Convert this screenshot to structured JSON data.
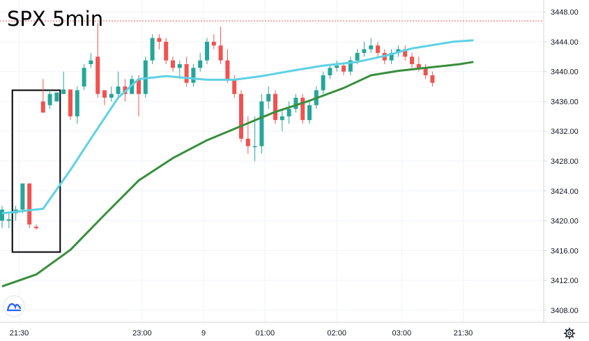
{
  "chart_data": {
    "type": "candlestick",
    "title": "SPX 5min",
    "xlabel": "",
    "ylabel": "",
    "ylim": [
      3406.4,
      3449.6
    ],
    "grid": true,
    "x_ticks": [
      {
        "label": "21:30",
        "x": 2.5
      },
      {
        "label": "23:00",
        "x": 20.5
      },
      {
        "label": "9",
        "x": 29.5
      },
      {
        "label": "01:00",
        "x": 38.5
      },
      {
        "label": "02:00",
        "x": 49.0
      },
      {
        "label": "03:00",
        "x": 58.5
      },
      {
        "label": "21:30",
        "x": 67.5
      }
    ],
    "y_ticks": [
      3408,
      3412,
      3416,
      3420,
      3424,
      3428,
      3432,
      3436,
      3440,
      3444,
      3448
    ],
    "candles": [
      [
        3420.0,
        3422.0,
        3419.0,
        3421.5
      ],
      [
        3420.0,
        3421.0,
        3419.0,
        3420.2
      ],
      [
        3421.0,
        3422.0,
        3420.0,
        3421.5
      ],
      [
        3421.5,
        3425.0,
        3421.0,
        3425.0
      ],
      [
        3425.0,
        3425.0,
        3419.0,
        3419.5
      ],
      [
        3419.2,
        3419.5,
        3418.8,
        3419.0
      ],
      [
        3436.0,
        3439.0,
        3434.5,
        3434.5
      ],
      [
        3435.5,
        3437.5,
        3435.0,
        3437.0
      ],
      [
        3436.0,
        3437.0,
        3436.0,
        3437.2
      ],
      [
        3437.0,
        3440.0,
        3437.0,
        3437.6
      ],
      [
        3437.6,
        3437.6,
        3433.5,
        3434.0
      ],
      [
        3434.0,
        3438.0,
        3433.0,
        3437.5
      ],
      [
        3438.0,
        3441.0,
        3437.5,
        3440.5
      ],
      [
        3441.0,
        3442.5,
        3440.5,
        3441.5
      ],
      [
        3442.0,
        3446.5,
        3436.5,
        3437.0
      ],
      [
        3437.5,
        3437.5,
        3435.5,
        3436.5
      ],
      [
        3436.5,
        3438.0,
        3436.0,
        3437.0
      ],
      [
        3437.0,
        3440.0,
        3436.5,
        3438.0
      ],
      [
        3438.0,
        3439.0,
        3436.0,
        3437.0
      ],
      [
        3437.0,
        3439.5,
        3437.0,
        3439.0
      ],
      [
        3439.0,
        3439.5,
        3434.0,
        3437.0
      ],
      [
        3437.0,
        3442.0,
        3436.5,
        3441.5
      ],
      [
        3441.5,
        3445.0,
        3441.0,
        3444.5
      ],
      [
        3444.5,
        3445.0,
        3443.0,
        3444.0
      ],
      [
        3444.0,
        3444.5,
        3441.0,
        3441.5
      ],
      [
        3441.5,
        3442.0,
        3440.0,
        3440.5
      ],
      [
        3440.5,
        3441.5,
        3439.0,
        3441.0
      ],
      [
        3441.0,
        3442.0,
        3438.0,
        3438.5
      ],
      [
        3438.5,
        3441.0,
        3438.0,
        3440.5
      ],
      [
        3440.5,
        3442.5,
        3440.0,
        3441.5
      ],
      [
        3441.5,
        3444.5,
        3441.0,
        3444.0
      ],
      [
        3444.0,
        3445.0,
        3443.0,
        3443.5
      ],
      [
        3443.5,
        3446.0,
        3441.0,
        3441.5
      ],
      [
        3441.5,
        3443.0,
        3438.5,
        3439.0
      ],
      [
        3439.0,
        3439.5,
        3436.5,
        3437.0
      ],
      [
        3437.0,
        3437.5,
        3430.5,
        3431.0
      ],
      [
        3431.0,
        3434.0,
        3429.0,
        3430.0
      ],
      [
        3430.0,
        3434.0,
        3428.0,
        3430.0
      ],
      [
        3430.0,
        3437.0,
        3429.0,
        3436.0
      ],
      [
        3436.0,
        3438.0,
        3435.0,
        3437.0
      ],
      [
        3437.0,
        3437.5,
        3433.0,
        3433.5
      ],
      [
        3433.5,
        3435.0,
        3432.0,
        3434.0
      ],
      [
        3434.0,
        3436.0,
        3433.0,
        3435.0
      ],
      [
        3435.0,
        3437.0,
        3434.5,
        3436.5
      ],
      [
        3436.5,
        3437.0,
        3433.0,
        3433.5
      ],
      [
        3433.5,
        3436.0,
        3433.0,
        3435.5
      ],
      [
        3435.5,
        3438.0,
        3435.0,
        3437.5
      ],
      [
        3437.5,
        3440.0,
        3437.0,
        3439.5
      ],
      [
        3439.5,
        3441.0,
        3439.0,
        3440.5
      ],
      [
        3440.5,
        3441.5,
        3440.0,
        3440.8
      ],
      [
        3440.8,
        3441.0,
        3439.5,
        3440.0
      ],
      [
        3440.0,
        3442.0,
        3439.5,
        3441.5
      ],
      [
        3441.5,
        3443.0,
        3441.0,
        3442.5
      ],
      [
        3442.5,
        3444.0,
        3442.0,
        3443.0
      ],
      [
        3443.0,
        3444.5,
        3442.5,
        3443.5
      ],
      [
        3443.5,
        3444.0,
        3442.0,
        3442.5
      ],
      [
        3442.5,
        3443.0,
        3441.0,
        3441.5
      ],
      [
        3441.5,
        3443.0,
        3441.0,
        3442.5
      ],
      [
        3442.5,
        3443.5,
        3442.0,
        3443.0
      ],
      [
        3443.0,
        3443.5,
        3441.5,
        3442.0
      ],
      [
        3442.0,
        3442.5,
        3440.5,
        3441.0
      ],
      [
        3441.0,
        3442.0,
        3440.0,
        3440.5
      ],
      [
        3440.5,
        3441.0,
        3439.0,
        3439.5
      ],
      [
        3439.5,
        3440.0,
        3438.0,
        3438.5
      ]
    ],
    "ema_fast": [
      [
        0,
        3421.0
      ],
      [
        6,
        3421.6
      ],
      [
        10,
        3426.8
      ],
      [
        14,
        3432.4
      ],
      [
        17,
        3436.5
      ],
      [
        20,
        3439.0
      ],
      [
        24,
        3439.4
      ],
      [
        30,
        3438.9
      ],
      [
        34,
        3438.9
      ],
      [
        38,
        3439.4
      ],
      [
        43,
        3440.2
      ],
      [
        47,
        3440.8
      ],
      [
        52,
        3441.3
      ],
      [
        56,
        3442.1
      ],
      [
        60,
        3443.1
      ],
      [
        66,
        3444.0
      ],
      [
        69,
        3444.2
      ]
    ],
    "ema_slow": [
      [
        0,
        3411.2
      ],
      [
        5,
        3412.8
      ],
      [
        10,
        3416.1
      ],
      [
        15,
        3420.8
      ],
      [
        20,
        3425.4
      ],
      [
        25,
        3428.4
      ],
      [
        30,
        3430.8
      ],
      [
        35,
        3432.7
      ],
      [
        40,
        3434.6
      ],
      [
        45,
        3436.1
      ],
      [
        50,
        3437.8
      ],
      [
        54,
        3439.5
      ],
      [
        58,
        3440.1
      ],
      [
        63,
        3440.6
      ],
      [
        67,
        3441.0
      ],
      [
        69,
        3441.3
      ]
    ],
    "annotation_box": {
      "x0": 1.5,
      "x1": 8.5,
      "y0": 3437.5,
      "y1": 3415.8
    },
    "last_price": 3446.8,
    "colors": {
      "up": "#26a69a",
      "down": "#ef5350",
      "ema_fast": "#5ed1e4",
      "ema_slow": "#388e3c",
      "last_price_line": "#ef5350",
      "grid": "#f0f3fa",
      "axis": "#d1d4dc"
    },
    "logo_icon": "tradingview-logo-icon",
    "settings_icon": "gear-icon"
  }
}
